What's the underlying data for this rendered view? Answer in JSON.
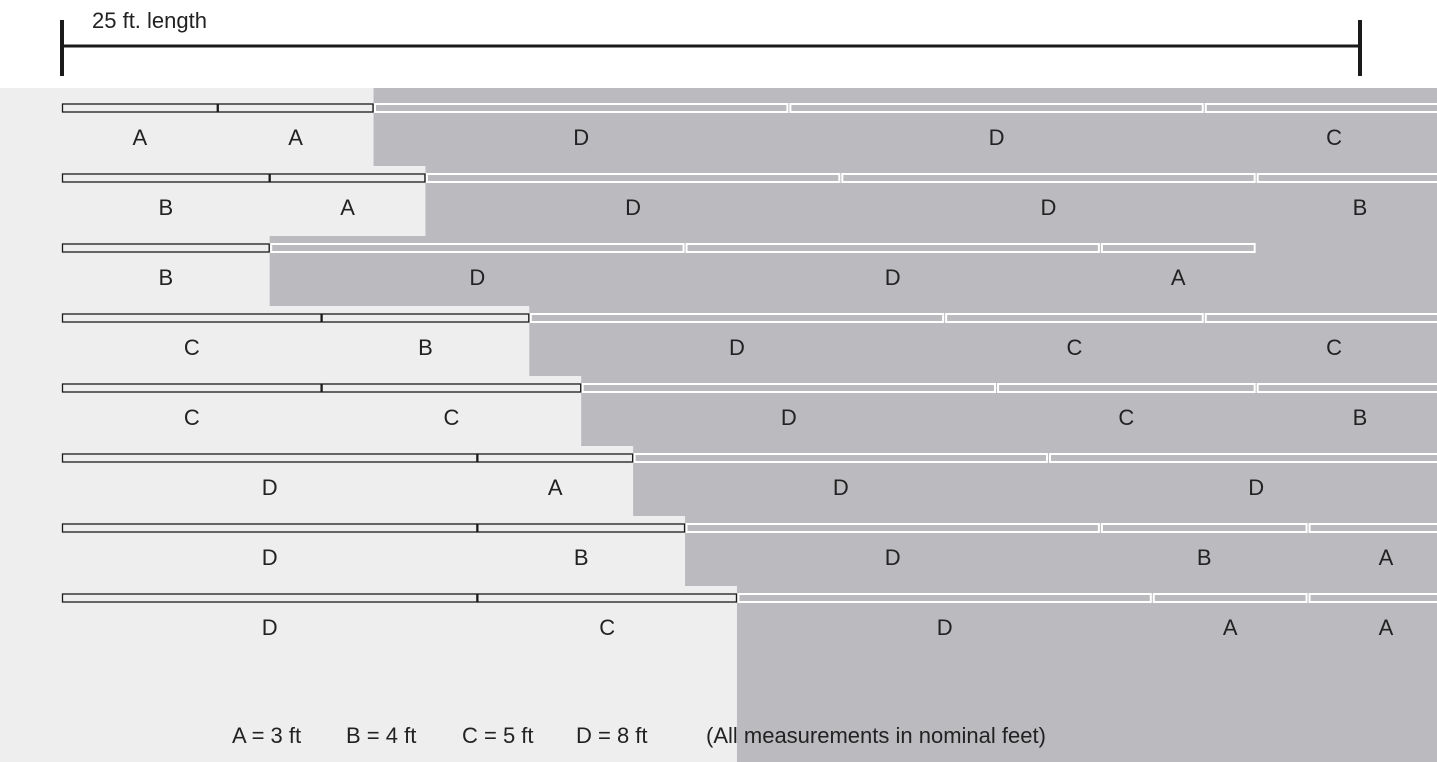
{
  "header": {
    "length_label": "25 ft. length"
  },
  "total_length_ft": 25,
  "board_sizes_ft": {
    "A": 3,
    "B": 4,
    "C": 5,
    "D": 8
  },
  "rows": [
    {
      "light": [
        "A",
        "A"
      ],
      "dark": [
        "D",
        "D",
        "C"
      ]
    },
    {
      "light": [
        "B",
        "A"
      ],
      "dark": [
        "D",
        "D",
        "B"
      ]
    },
    {
      "light": [
        "B"
      ],
      "dark": [
        "D",
        "D",
        "A"
      ]
    },
    {
      "light": [
        "C",
        "B"
      ],
      "dark": [
        "D",
        "C",
        "C"
      ]
    },
    {
      "light": [
        "C",
        "C"
      ],
      "dark": [
        "D",
        "C",
        "B"
      ]
    },
    {
      "light": [
        "D",
        "A"
      ],
      "dark": [
        "D",
        "D"
      ]
    },
    {
      "light": [
        "D",
        "B"
      ],
      "dark": [
        "D",
        "B",
        "A"
      ]
    },
    {
      "light": [
        "D",
        "C"
      ],
      "dark": [
        "D",
        "A",
        "A"
      ]
    }
  ],
  "legend": {
    "a": "A = 3 ft",
    "b": "B = 4 ft",
    "c": "C = 5 ft",
    "d": "D = 8 ft",
    "note": "(All measurements in nominal feet)"
  },
  "colors": {
    "light_zone": "#eeeeee",
    "dark_zone": "#bbbbbf",
    "line": "#1a1a1a",
    "outline_dark": "#ffffff"
  }
}
